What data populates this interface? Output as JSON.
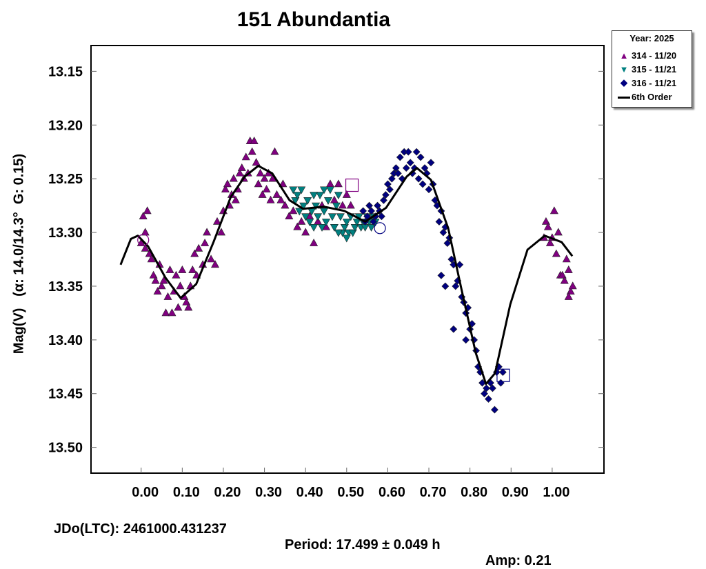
{
  "chart_data": {
    "type": "scatter",
    "title": "151 Abundantia",
    "ylabel": "Mag(V)   (α: 14.0/14.3°  G: 0.15)",
    "xlabel": "",
    "xlim": [
      -0.122,
      1.126
    ],
    "ylim": [
      13.524,
      13.126
    ],
    "y_inverted": true,
    "xticks": [
      "0.00",
      "0.10",
      "0.20",
      "0.30",
      "0.40",
      "0.50",
      "0.60",
      "0.70",
      "0.80",
      "0.90",
      "1.00"
    ],
    "yticks": [
      "13.15",
      "13.20",
      "13.25",
      "13.30",
      "13.35",
      "13.40",
      "13.45",
      "13.50"
    ],
    "grid": false,
    "legend_position": "outside-top-right",
    "legend_title": "Year: 2025",
    "footer": {
      "jd": "JDo(LTC): 2461000.431237",
      "period": "Period: 17.499 ± 0.049 h",
      "amp": "Amp: 0.21"
    },
    "series": [
      {
        "name": "314 - 11/20",
        "marker": "triangle-up",
        "color": "#800080",
        "points": [
          [
            0.0,
            13.31
          ],
          [
            0.005,
            13.285
          ],
          [
            0.01,
            13.3
          ],
          [
            0.015,
            13.28
          ],
          [
            0.01,
            13.315
          ],
          [
            0.02,
            13.32
          ],
          [
            0.025,
            13.325
          ],
          [
            0.03,
            13.34
          ],
          [
            0.035,
            13.345
          ],
          [
            0.04,
            13.355
          ],
          [
            0.045,
            13.33
          ],
          [
            0.05,
            13.35
          ],
          [
            0.055,
            13.345
          ],
          [
            0.06,
            13.375
          ],
          [
            0.065,
            13.36
          ],
          [
            0.07,
            13.335
          ],
          [
            0.075,
            13.375
          ],
          [
            0.08,
            13.355
          ],
          [
            0.085,
            13.34
          ],
          [
            0.09,
            13.37
          ],
          [
            0.095,
            13.35
          ],
          [
            0.1,
            13.335
          ],
          [
            0.105,
            13.36
          ],
          [
            0.11,
            13.365
          ],
          [
            0.115,
            13.37
          ],
          [
            0.12,
            13.35
          ],
          [
            0.125,
            13.335
          ],
          [
            0.13,
            13.32
          ],
          [
            0.135,
            13.34
          ],
          [
            0.14,
            13.315
          ],
          [
            0.15,
            13.33
          ],
          [
            0.155,
            13.31
          ],
          [
            0.16,
            13.3
          ],
          [
            0.17,
            13.325
          ],
          [
            0.18,
            13.33
          ],
          [
            0.185,
            13.29
          ],
          [
            0.195,
            13.3
          ],
          [
            0.2,
            13.28
          ],
          [
            0.205,
            13.26
          ],
          [
            0.21,
            13.255
          ],
          [
            0.215,
            13.275
          ],
          [
            0.22,
            13.265
          ],
          [
            0.225,
            13.25
          ],
          [
            0.23,
            13.27
          ],
          [
            0.235,
            13.26
          ],
          [
            0.24,
            13.245
          ],
          [
            0.245,
            13.24
          ],
          [
            0.25,
            13.25
          ],
          [
            0.255,
            13.23
          ],
          [
            0.26,
            13.245
          ],
          [
            0.265,
            13.215
          ],
          [
            0.27,
            13.225
          ],
          [
            0.275,
            13.215
          ],
          [
            0.28,
            13.235
          ],
          [
            0.285,
            13.255
          ],
          [
            0.29,
            13.245
          ],
          [
            0.295,
            13.265
          ],
          [
            0.3,
            13.25
          ],
          [
            0.305,
            13.26
          ],
          [
            0.31,
            13.245
          ],
          [
            0.315,
            13.27
          ],
          [
            0.32,
            13.25
          ],
          [
            0.325,
            13.225
          ],
          [
            0.33,
            13.265
          ],
          [
            0.34,
            13.27
          ],
          [
            0.345,
            13.255
          ],
          [
            0.35,
            13.275
          ],
          [
            0.36,
            13.285
          ],
          [
            0.37,
            13.28
          ],
          [
            0.38,
            13.295
          ],
          [
            0.39,
            13.29
          ],
          [
            0.4,
            13.3
          ],
          [
            0.41,
            13.285
          ],
          [
            0.42,
            13.31
          ],
          [
            0.43,
            13.29
          ],
          [
            0.44,
            13.275
          ],
          [
            0.45,
            13.295
          ],
          [
            0.46,
            13.255
          ],
          [
            0.47,
            13.27
          ],
          [
            0.48,
            13.255
          ],
          [
            0.49,
            13.275
          ],
          [
            0.5,
            13.265
          ],
          [
            0.51,
            13.275
          ],
          [
            0.98,
            13.305
          ],
          [
            0.985,
            13.29
          ],
          [
            0.99,
            13.295
          ],
          [
            0.995,
            13.31
          ],
          [
            1.0,
            13.305
          ],
          [
            1.005,
            13.28
          ],
          [
            1.01,
            13.32
          ],
          [
            1.015,
            13.3
          ],
          [
            1.02,
            13.34
          ],
          [
            1.025,
            13.34
          ],
          [
            1.03,
            13.345
          ],
          [
            1.035,
            13.325
          ],
          [
            1.04,
            13.335
          ],
          [
            1.045,
            13.355
          ],
          [
            1.04,
            13.36
          ],
          [
            1.05,
            13.35
          ]
        ]
      },
      {
        "name": "315 - 11/21",
        "marker": "triangle-down",
        "color": "#008080",
        "points": [
          [
            0.37,
            13.26
          ],
          [
            0.375,
            13.27
          ],
          [
            0.38,
            13.265
          ],
          [
            0.385,
            13.28
          ],
          [
            0.39,
            13.26
          ],
          [
            0.395,
            13.275
          ],
          [
            0.4,
            13.285
          ],
          [
            0.405,
            13.27
          ],
          [
            0.41,
            13.29
          ],
          [
            0.415,
            13.28
          ],
          [
            0.42,
            13.295
          ],
          [
            0.425,
            13.275
          ],
          [
            0.43,
            13.285
          ],
          [
            0.435,
            13.265
          ],
          [
            0.44,
            13.295
          ],
          [
            0.445,
            13.28
          ],
          [
            0.45,
            13.29
          ],
          [
            0.455,
            13.27
          ],
          [
            0.46,
            13.26
          ],
          [
            0.465,
            13.285
          ],
          [
            0.47,
            13.295
          ],
          [
            0.475,
            13.275
          ],
          [
            0.48,
            13.265
          ],
          [
            0.485,
            13.285
          ],
          [
            0.49,
            13.3
          ],
          [
            0.495,
            13.295
          ],
          [
            0.5,
            13.29
          ],
          [
            0.505,
            13.3
          ],
          [
            0.51,
            13.285
          ],
          [
            0.515,
            13.3
          ],
          [
            0.52,
            13.295
          ],
          [
            0.525,
            13.29
          ],
          [
            0.53,
            13.285
          ],
          [
            0.535,
            13.295
          ],
          [
            0.54,
            13.29
          ],
          [
            0.545,
            13.295
          ],
          [
            0.55,
            13.285
          ],
          [
            0.555,
            13.29
          ],
          [
            0.56,
            13.295
          ],
          [
            0.565,
            13.285
          ],
          [
            0.57,
            13.29
          ],
          [
            0.5,
            13.305
          ],
          [
            0.48,
            13.3
          ],
          [
            0.42,
            13.265
          ],
          [
            0.445,
            13.26
          ]
        ]
      },
      {
        "name": "316 - 11/21",
        "marker": "diamond",
        "color": "#000080",
        "points": [
          [
            0.54,
            13.28
          ],
          [
            0.545,
            13.29
          ],
          [
            0.55,
            13.285
          ],
          [
            0.555,
            13.275
          ],
          [
            0.56,
            13.28
          ],
          [
            0.565,
            13.29
          ],
          [
            0.57,
            13.285
          ],
          [
            0.575,
            13.275
          ],
          [
            0.58,
            13.28
          ],
          [
            0.585,
            13.285
          ],
          [
            0.59,
            13.27
          ],
          [
            0.595,
            13.265
          ],
          [
            0.6,
            13.255
          ],
          [
            0.605,
            13.26
          ],
          [
            0.61,
            13.25
          ],
          [
            0.615,
            13.245
          ],
          [
            0.62,
            13.24
          ],
          [
            0.625,
            13.245
          ],
          [
            0.63,
            13.23
          ],
          [
            0.635,
            13.25
          ],
          [
            0.64,
            13.225
          ],
          [
            0.645,
            13.24
          ],
          [
            0.65,
            13.225
          ],
          [
            0.655,
            13.235
          ],
          [
            0.66,
            13.245
          ],
          [
            0.665,
            13.24
          ],
          [
            0.67,
            13.225
          ],
          [
            0.675,
            13.25
          ],
          [
            0.68,
            13.23
          ],
          [
            0.685,
            13.255
          ],
          [
            0.69,
            13.24
          ],
          [
            0.695,
            13.245
          ],
          [
            0.7,
            13.26
          ],
          [
            0.705,
            13.235
          ],
          [
            0.71,
            13.255
          ],
          [
            0.715,
            13.27
          ],
          [
            0.72,
            13.275
          ],
          [
            0.725,
            13.29
          ],
          [
            0.73,
            13.28
          ],
          [
            0.735,
            13.3
          ],
          [
            0.74,
            13.295
          ],
          [
            0.745,
            13.31
          ],
          [
            0.75,
            13.305
          ],
          [
            0.755,
            13.325
          ],
          [
            0.76,
            13.33
          ],
          [
            0.765,
            13.35
          ],
          [
            0.77,
            13.345
          ],
          [
            0.775,
            13.33
          ],
          [
            0.78,
            13.36
          ],
          [
            0.785,
            13.365
          ],
          [
            0.79,
            13.375
          ],
          [
            0.795,
            13.37
          ],
          [
            0.8,
            13.39
          ],
          [
            0.805,
            13.385
          ],
          [
            0.81,
            13.4
          ],
          [
            0.815,
            13.41
          ],
          [
            0.82,
            13.425
          ],
          [
            0.825,
            13.43
          ],
          [
            0.83,
            13.44
          ],
          [
            0.835,
            13.45
          ],
          [
            0.84,
            13.445
          ],
          [
            0.845,
            13.455
          ],
          [
            0.85,
            13.44
          ],
          [
            0.855,
            13.445
          ],
          [
            0.86,
            13.465
          ],
          [
            0.865,
            13.43
          ],
          [
            0.87,
            13.425
          ],
          [
            0.875,
            13.44
          ],
          [
            0.88,
            13.43
          ],
          [
            0.73,
            13.34
          ],
          [
            0.74,
            13.35
          ],
          [
            0.76,
            13.39
          ],
          [
            0.79,
            13.4
          ]
        ]
      },
      {
        "name": "6th Order",
        "type": "line",
        "color": "#000000",
        "points": [
          [
            -0.05,
            13.33
          ],
          [
            -0.025,
            13.306
          ],
          [
            -0.008,
            13.303
          ],
          [
            0.017,
            13.313
          ],
          [
            0.059,
            13.342
          ],
          [
            0.096,
            13.361
          ],
          [
            0.134,
            13.348
          ],
          [
            0.176,
            13.309
          ],
          [
            0.218,
            13.267
          ],
          [
            0.252,
            13.248
          ],
          [
            0.285,
            13.238
          ],
          [
            0.319,
            13.245
          ],
          [
            0.361,
            13.27
          ],
          [
            0.394,
            13.278
          ],
          [
            0.445,
            13.276
          ],
          [
            0.495,
            13.28
          ],
          [
            0.545,
            13.29
          ],
          [
            0.596,
            13.277
          ],
          [
            0.646,
            13.248
          ],
          [
            0.671,
            13.24
          ],
          [
            0.705,
            13.251
          ],
          [
            0.747,
            13.296
          ],
          [
            0.78,
            13.354
          ],
          [
            0.814,
            13.412
          ],
          [
            0.839,
            13.441
          ],
          [
            0.861,
            13.431
          ],
          [
            0.898,
            13.367
          ],
          [
            0.94,
            13.316
          ],
          [
            0.982,
            13.303
          ],
          [
            1.023,
            13.309
          ],
          [
            1.049,
            13.322
          ]
        ]
      }
    ],
    "reference_markers": [
      {
        "shape": "circle",
        "color": "#800080",
        "x": 0.005,
        "y": 13.307
      },
      {
        "shape": "square",
        "color": "#800080",
        "x": 0.513,
        "y": 13.256
      },
      {
        "shape": "circle",
        "color": "#000080",
        "x": 0.581,
        "y": 13.296
      },
      {
        "shape": "square",
        "color": "#000080",
        "x": 0.881,
        "y": 13.433
      }
    ]
  }
}
